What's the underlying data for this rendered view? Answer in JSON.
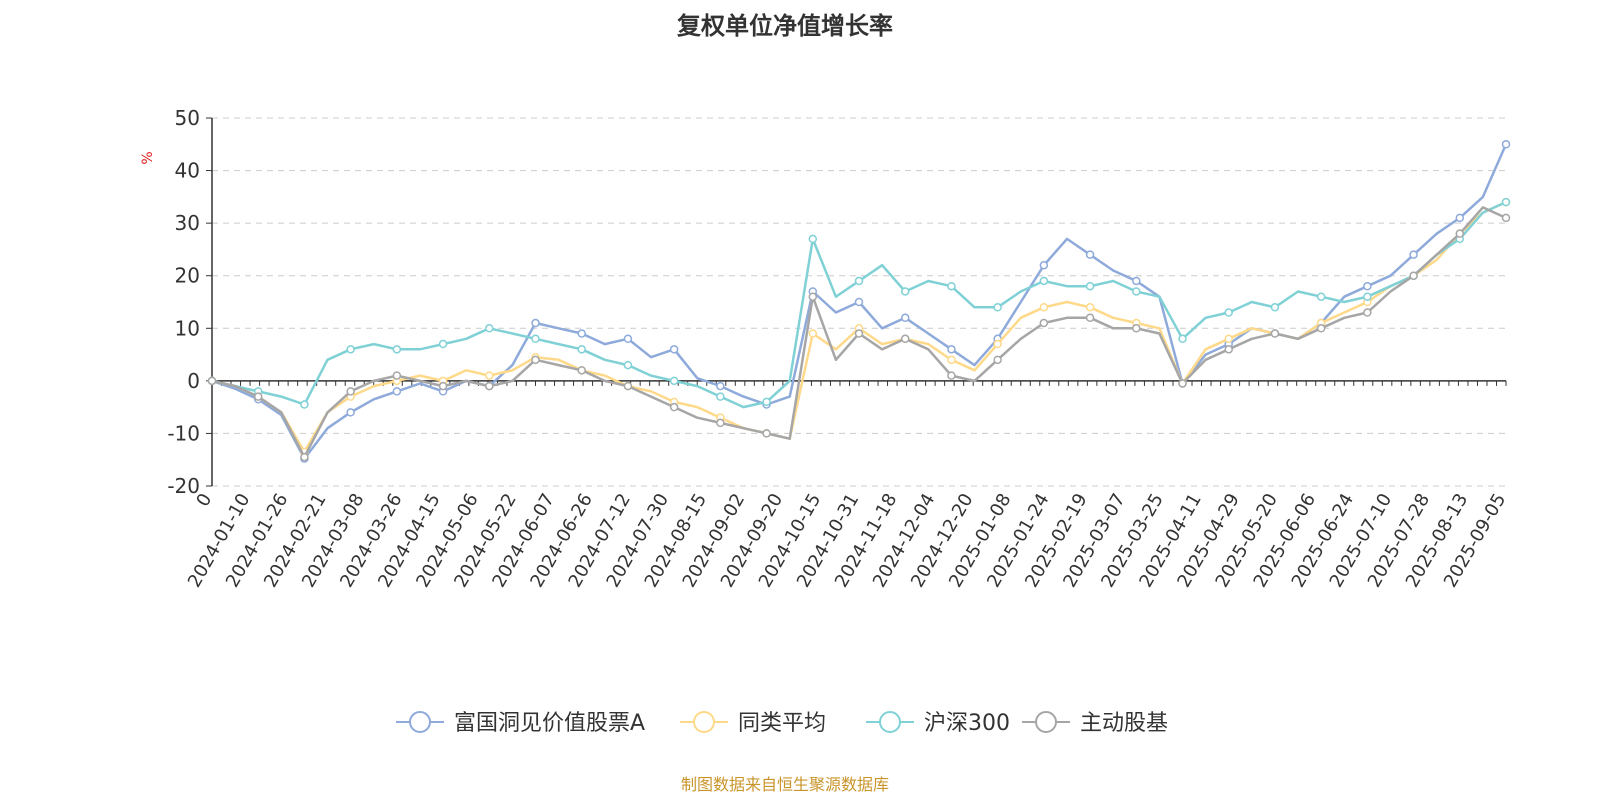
{
  "chart_data": {
    "type": "line",
    "title": "复权单位净值增长率",
    "ylabel": "%",
    "ylim": [
      -20,
      50
    ],
    "yticks": [
      -20,
      -10,
      0,
      10,
      20,
      30,
      40,
      50
    ],
    "grid": true,
    "legend_position": "bottom",
    "x_tick_labels": [
      "0",
      "2024-01-10",
      "2024-01-26",
      "2024-02-21",
      "2024-03-08",
      "2024-03-26",
      "2024-04-15",
      "2024-05-06",
      "2024-05-22",
      "2024-06-07",
      "2024-06-26",
      "2024-07-12",
      "2024-07-30",
      "2024-08-15",
      "2024-09-02",
      "2024-09-20",
      "2024-10-15",
      "2024-10-31",
      "2024-11-18",
      "2024-12-04",
      "2024-12-20",
      "2025-01-08",
      "2025-01-24",
      "2025-02-19",
      "2025-03-07",
      "2025-03-25",
      "2025-04-11",
      "2025-04-29",
      "2025-05-20",
      "2025-06-06",
      "2025-06-24",
      "2025-07-10",
      "2025-07-28",
      "2025-08-13",
      "2025-09-05"
    ],
    "series": [
      {
        "name": "富国洞见价值股票A",
        "color": "#8eaadb",
        "values": [
          0,
          -1.5,
          -3.5,
          -6.5,
          -14.8,
          -9,
          -6,
          -3.5,
          -2,
          -0.5,
          -2,
          0,
          -1,
          3,
          11,
          10,
          9,
          7,
          8,
          4.5,
          6,
          0.5,
          -1,
          -3,
          -4.5,
          -3,
          17,
          13,
          15,
          10,
          12,
          9,
          6,
          3,
          8,
          15,
          22,
          27,
          24,
          21,
          19,
          16,
          -0.5,
          5,
          7,
          10,
          9,
          8,
          11,
          16,
          18,
          20,
          24,
          28,
          31,
          35,
          45
        ]
      },
      {
        "name": "同类平均",
        "color": "#ffd98a",
        "values": [
          0,
          -1,
          -3,
          -6,
          -13.5,
          -6,
          -3,
          -1,
          0,
          1,
          0,
          2,
          1,
          2,
          4.5,
          4,
          2,
          1,
          -1,
          -2,
          -4,
          -5,
          -7,
          -9,
          -10,
          -11,
          9,
          6,
          10,
          7,
          8,
          7,
          4,
          2,
          7,
          12,
          14,
          15,
          14,
          12,
          11,
          10,
          -0.5,
          6,
          8,
          10,
          9,
          8,
          11,
          13,
          15,
          18,
          20,
          23,
          28,
          32,
          34
        ]
      },
      {
        "name": "沪深300",
        "color": "#7fd1d6",
        "values": [
          0,
          -1,
          -2,
          -3,
          -4.5,
          4,
          6,
          7,
          6,
          6,
          7,
          8,
          10,
          9,
          8,
          7,
          6,
          4,
          3,
          1,
          0,
          -1,
          -3,
          -5,
          -4,
          0,
          27,
          16,
          19,
          22,
          17,
          19,
          18,
          14,
          14,
          17,
          19,
          18,
          18,
          19,
          17,
          16,
          8,
          12,
          13,
          15,
          14,
          17,
          16,
          15,
          16,
          18,
          20,
          24,
          27,
          32,
          34
        ]
      },
      {
        "name": "主动股基",
        "color": "#a6a6a6",
        "values": [
          0,
          -1,
          -3,
          -6,
          -14.5,
          -6,
          -2,
          0,
          1,
          0,
          -1,
          0,
          -1,
          0,
          4,
          3,
          2,
          0,
          -1,
          -3,
          -5,
          -7,
          -8,
          -9,
          -10,
          -11,
          16,
          4,
          9,
          6,
          8,
          6,
          1,
          0,
          4,
          8,
          11,
          12,
          12,
          10,
          10,
          9,
          -0.5,
          4,
          6,
          8,
          9,
          8,
          10,
          12,
          13,
          17,
          20,
          24,
          28,
          33,
          31
        ]
      }
    ]
  },
  "source_note": "制图数据来自恒生聚源数据库"
}
